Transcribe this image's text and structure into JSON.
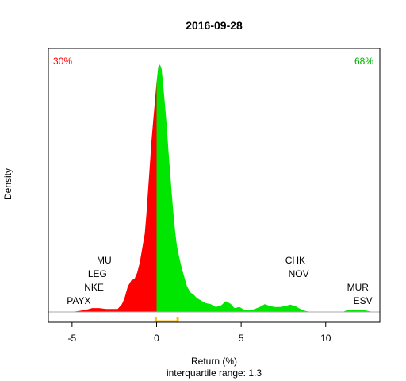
{
  "chart_data": {
    "type": "area",
    "title": "2016-09-28",
    "xlabel": "Return (%)",
    "ylabel": "Density",
    "subtitle": "interquartile range: 1.3",
    "xlim": [
      -6.4,
      13.2
    ],
    "ylim": [
      0,
      0.52
    ],
    "x_ticks": [
      -5,
      0,
      5,
      10
    ],
    "negative_share_label": "30%",
    "positive_share_label": "68%",
    "colors": {
      "negative": "#ff0000",
      "positive": "#00e600",
      "iqr": "#ffc000",
      "baseline": "#aaaaaa"
    },
    "iqr": [
      -0.05,
      1.25
    ],
    "density": {
      "x": [
        -5.0,
        -4.6,
        -4.2,
        -4.0,
        -3.8,
        -3.4,
        -3.0,
        -2.6,
        -2.3,
        -2.05,
        -1.9,
        -1.7,
        -1.5,
        -1.3,
        -1.15,
        -1.0,
        -0.85,
        -0.7,
        -0.6,
        -0.5,
        -0.4,
        -0.3,
        -0.2,
        -0.1,
        0.0,
        0.1,
        0.2,
        0.3,
        0.4,
        0.5,
        0.6,
        0.7,
        0.8,
        0.9,
        1.0,
        1.1,
        1.2,
        1.35,
        1.5,
        1.65,
        1.8,
        2.0,
        2.2,
        2.4,
        2.6,
        2.9,
        3.2,
        3.5,
        3.8,
        4.1,
        4.4,
        4.6,
        4.9,
        5.2,
        5.5,
        5.8,
        6.1,
        6.4,
        6.7,
        7.0,
        7.3,
        7.6,
        7.9,
        8.2,
        8.5,
        8.8,
        9.1,
        9.4,
        10.0,
        10.6,
        11.0,
        11.3,
        11.6,
        11.9,
        12.2,
        12.5,
        12.8
      ],
      "y": [
        0,
        0.002,
        0.004,
        0.006,
        0.008,
        0.008,
        0.006,
        0.006,
        0.006,
        0.016,
        0.028,
        0.052,
        0.064,
        0.068,
        0.08,
        0.1,
        0.13,
        0.16,
        0.2,
        0.25,
        0.3,
        0.35,
        0.39,
        0.43,
        0.47,
        0.5,
        0.505,
        0.495,
        0.46,
        0.42,
        0.38,
        0.33,
        0.285,
        0.24,
        0.2,
        0.165,
        0.135,
        0.11,
        0.088,
        0.07,
        0.052,
        0.04,
        0.035,
        0.028,
        0.024,
        0.018,
        0.016,
        0.01,
        0.013,
        0.022,
        0.016,
        0.008,
        0.01,
        0.004,
        0.003,
        0.006,
        0.01,
        0.016,
        0.012,
        0.01,
        0.01,
        0.012,
        0.015,
        0.012,
        0.006,
        0.002,
        0.0,
        0.0,
        0.0,
        0.0,
        0.0,
        0.004,
        0.005,
        0.003,
        0.004,
        0.002,
        0.0
      ]
    },
    "annotations": [
      {
        "text": "MU",
        "x": -3.1,
        "level": 4
      },
      {
        "text": "LEG",
        "x": -3.5,
        "level": 3
      },
      {
        "text": "NKE",
        "x": -3.7,
        "level": 2
      },
      {
        "text": "PAYX",
        "x": -4.6,
        "level": 1
      },
      {
        "text": "CHK",
        "x": 8.2,
        "level": 4
      },
      {
        "text": "NOV",
        "x": 8.4,
        "level": 3
      },
      {
        "text": "MUR",
        "x": 11.9,
        "level": 2
      },
      {
        "text": "ESV",
        "x": 12.2,
        "level": 1
      }
    ]
  }
}
